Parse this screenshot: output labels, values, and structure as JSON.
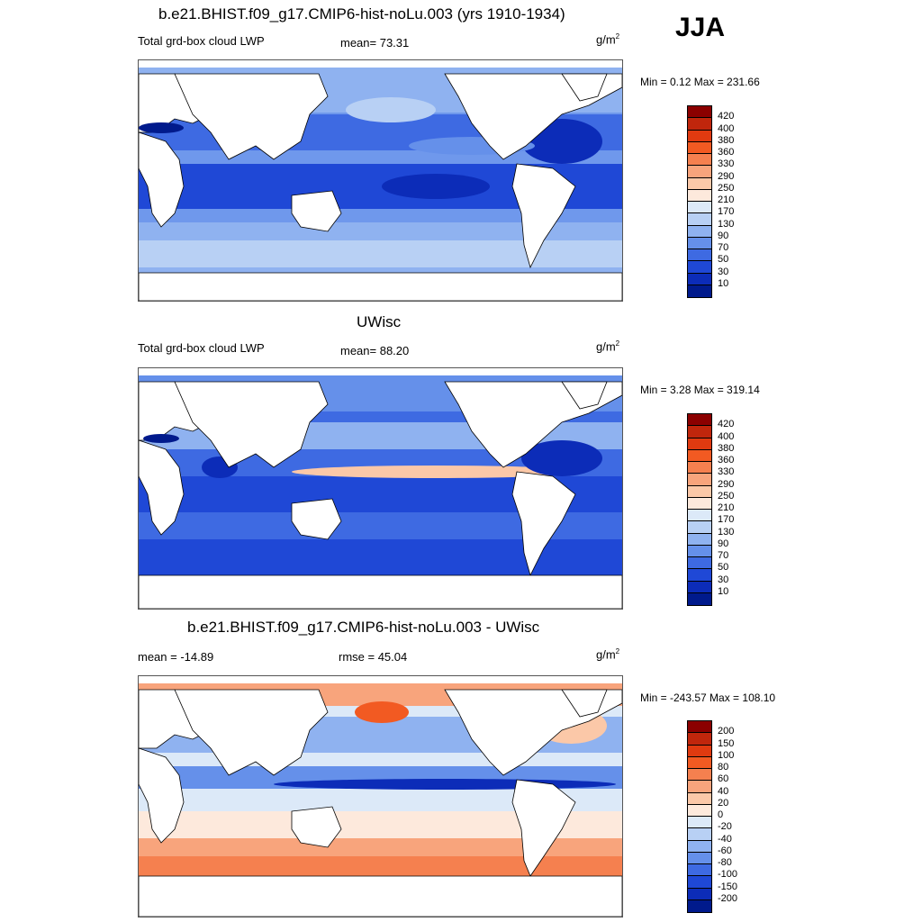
{
  "season": "JJA",
  "units_base": "g/m",
  "units_exp": "2",
  "panels": [
    {
      "title": "b.e21.BHIST.f09_g17.CMIP6-hist-noLu.003 (yrs 1910-1934)",
      "left_label": "Total grd-box cloud LWP",
      "center_label": "mean=  73.31",
      "minmax": "Min =   0.12 Max = 231.66"
    },
    {
      "title": "UWisc",
      "left_label": "Total grd-box cloud LWP",
      "center_label": "mean=  88.20",
      "minmax": "Min =   3.28 Max = 319.14"
    },
    {
      "title": "b.e21.BHIST.f09_g17.CMIP6-hist-noLu.003 - UWisc",
      "left_label": "mean = -14.89",
      "center_label": "rmse =  45.04",
      "minmax": "Min = -243.57 Max = 108.10"
    }
  ],
  "colorbars": {
    "abs": {
      "labels": [
        "420",
        "400",
        "380",
        "360",
        "330",
        "290",
        "250",
        "210",
        "170",
        "130",
        "90",
        "70",
        "50",
        "30",
        "10"
      ],
      "colors": [
        "#8b0000",
        "#c0260c",
        "#e03a10",
        "#f25a22",
        "#f5804f",
        "#f8a47c",
        "#fbc8a8",
        "#fde9dc",
        "#dce9f8",
        "#b8d0f4",
        "#8fb2f0",
        "#6590ea",
        "#3e6ae2",
        "#1f48d6",
        "#0c2cb8",
        "#001a8c"
      ]
    },
    "diff": {
      "labels": [
        "200",
        "150",
        "100",
        "80",
        "60",
        "40",
        "20",
        "0",
        "-20",
        "-40",
        "-60",
        "-80",
        "-100",
        "-150",
        "-200"
      ],
      "colors": [
        "#8b0000",
        "#c0260c",
        "#e03a10",
        "#f25a22",
        "#f5804f",
        "#f8a47c",
        "#fbc8a8",
        "#fde9dc",
        "#dce9f8",
        "#b8d0f4",
        "#8fb2f0",
        "#6590ea",
        "#3e6ae2",
        "#1f48d6",
        "#0c2cb8",
        "#001a8c"
      ]
    }
  }
}
